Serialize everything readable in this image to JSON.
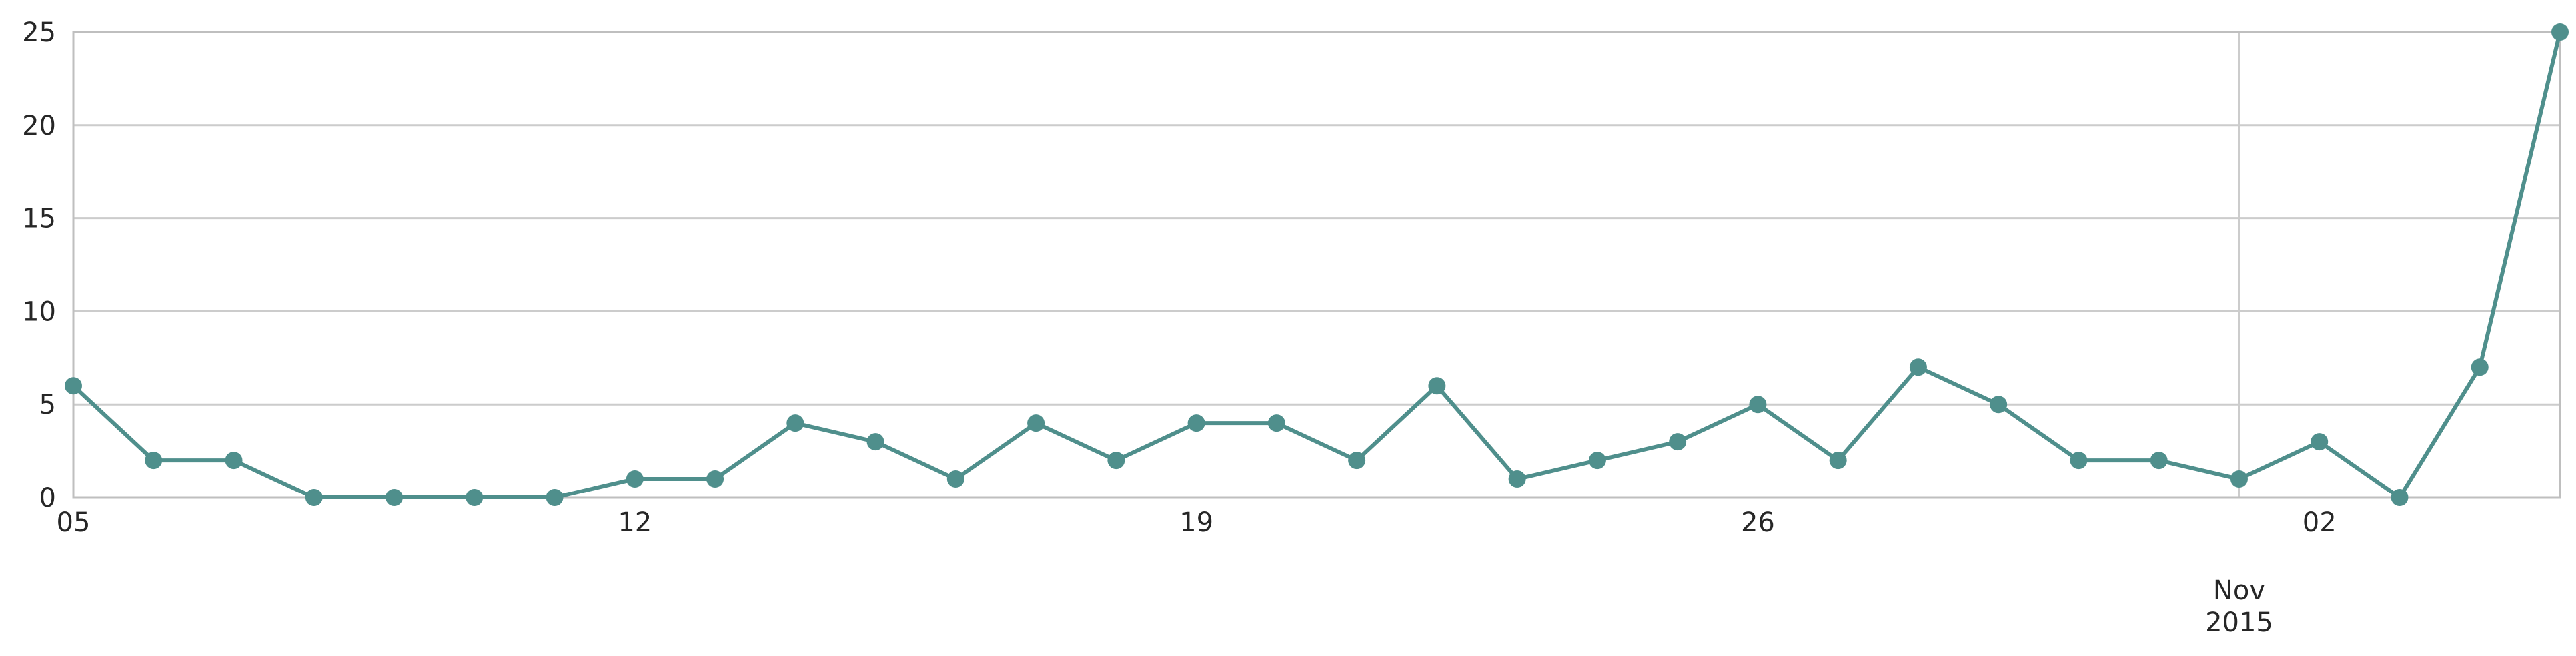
{
  "chart_data": {
    "type": "line",
    "title": "",
    "xlabel": "",
    "ylabel": "",
    "x": [
      "2015-10-05",
      "2015-10-06",
      "2015-10-07",
      "2015-10-08",
      "2015-10-09",
      "2015-10-10",
      "2015-10-11",
      "2015-10-12",
      "2015-10-13",
      "2015-10-14",
      "2015-10-15",
      "2015-10-16",
      "2015-10-17",
      "2015-10-18",
      "2015-10-19",
      "2015-10-20",
      "2015-10-21",
      "2015-10-22",
      "2015-10-23",
      "2015-10-24",
      "2015-10-25",
      "2015-10-26",
      "2015-10-27",
      "2015-10-28",
      "2015-10-29",
      "2015-10-30",
      "2015-10-31",
      "2015-11-01",
      "2015-11-02",
      "2015-11-03",
      "2015-11-04",
      "2015-11-05"
    ],
    "series": [
      {
        "values": [
          6,
          2,
          2,
          0,
          0,
          0,
          0,
          1,
          1,
          4,
          3,
          1,
          4,
          2,
          4,
          4,
          2,
          6,
          1,
          2,
          3,
          5,
          2,
          7,
          5,
          2,
          2,
          1,
          3,
          0,
          7,
          25
        ]
      }
    ],
    "xlim": [
      "2015-10-05",
      "2015-11-05"
    ],
    "ylim": [
      0,
      25
    ],
    "y_ticks": [
      "0",
      "5",
      "10",
      "15",
      "20",
      "25"
    ],
    "x_ticks": [
      {
        "x": "2015-10-05",
        "label": "05"
      },
      {
        "x": "2015-10-12",
        "label": "12"
      },
      {
        "x": "2015-10-19",
        "label": "19"
      },
      {
        "x": "2015-10-26",
        "label": "26"
      },
      {
        "x": "2015-11-02",
        "label": "02"
      }
    ],
    "x_major_tick": {
      "x": "2015-11-01",
      "label_month": "Nov",
      "label_year": "2015"
    },
    "grid": true,
    "colors": {
      "series": "#4f8f8c",
      "grid": "#cccccc",
      "frame": "#bfbfbf",
      "text": "#262626"
    }
  }
}
